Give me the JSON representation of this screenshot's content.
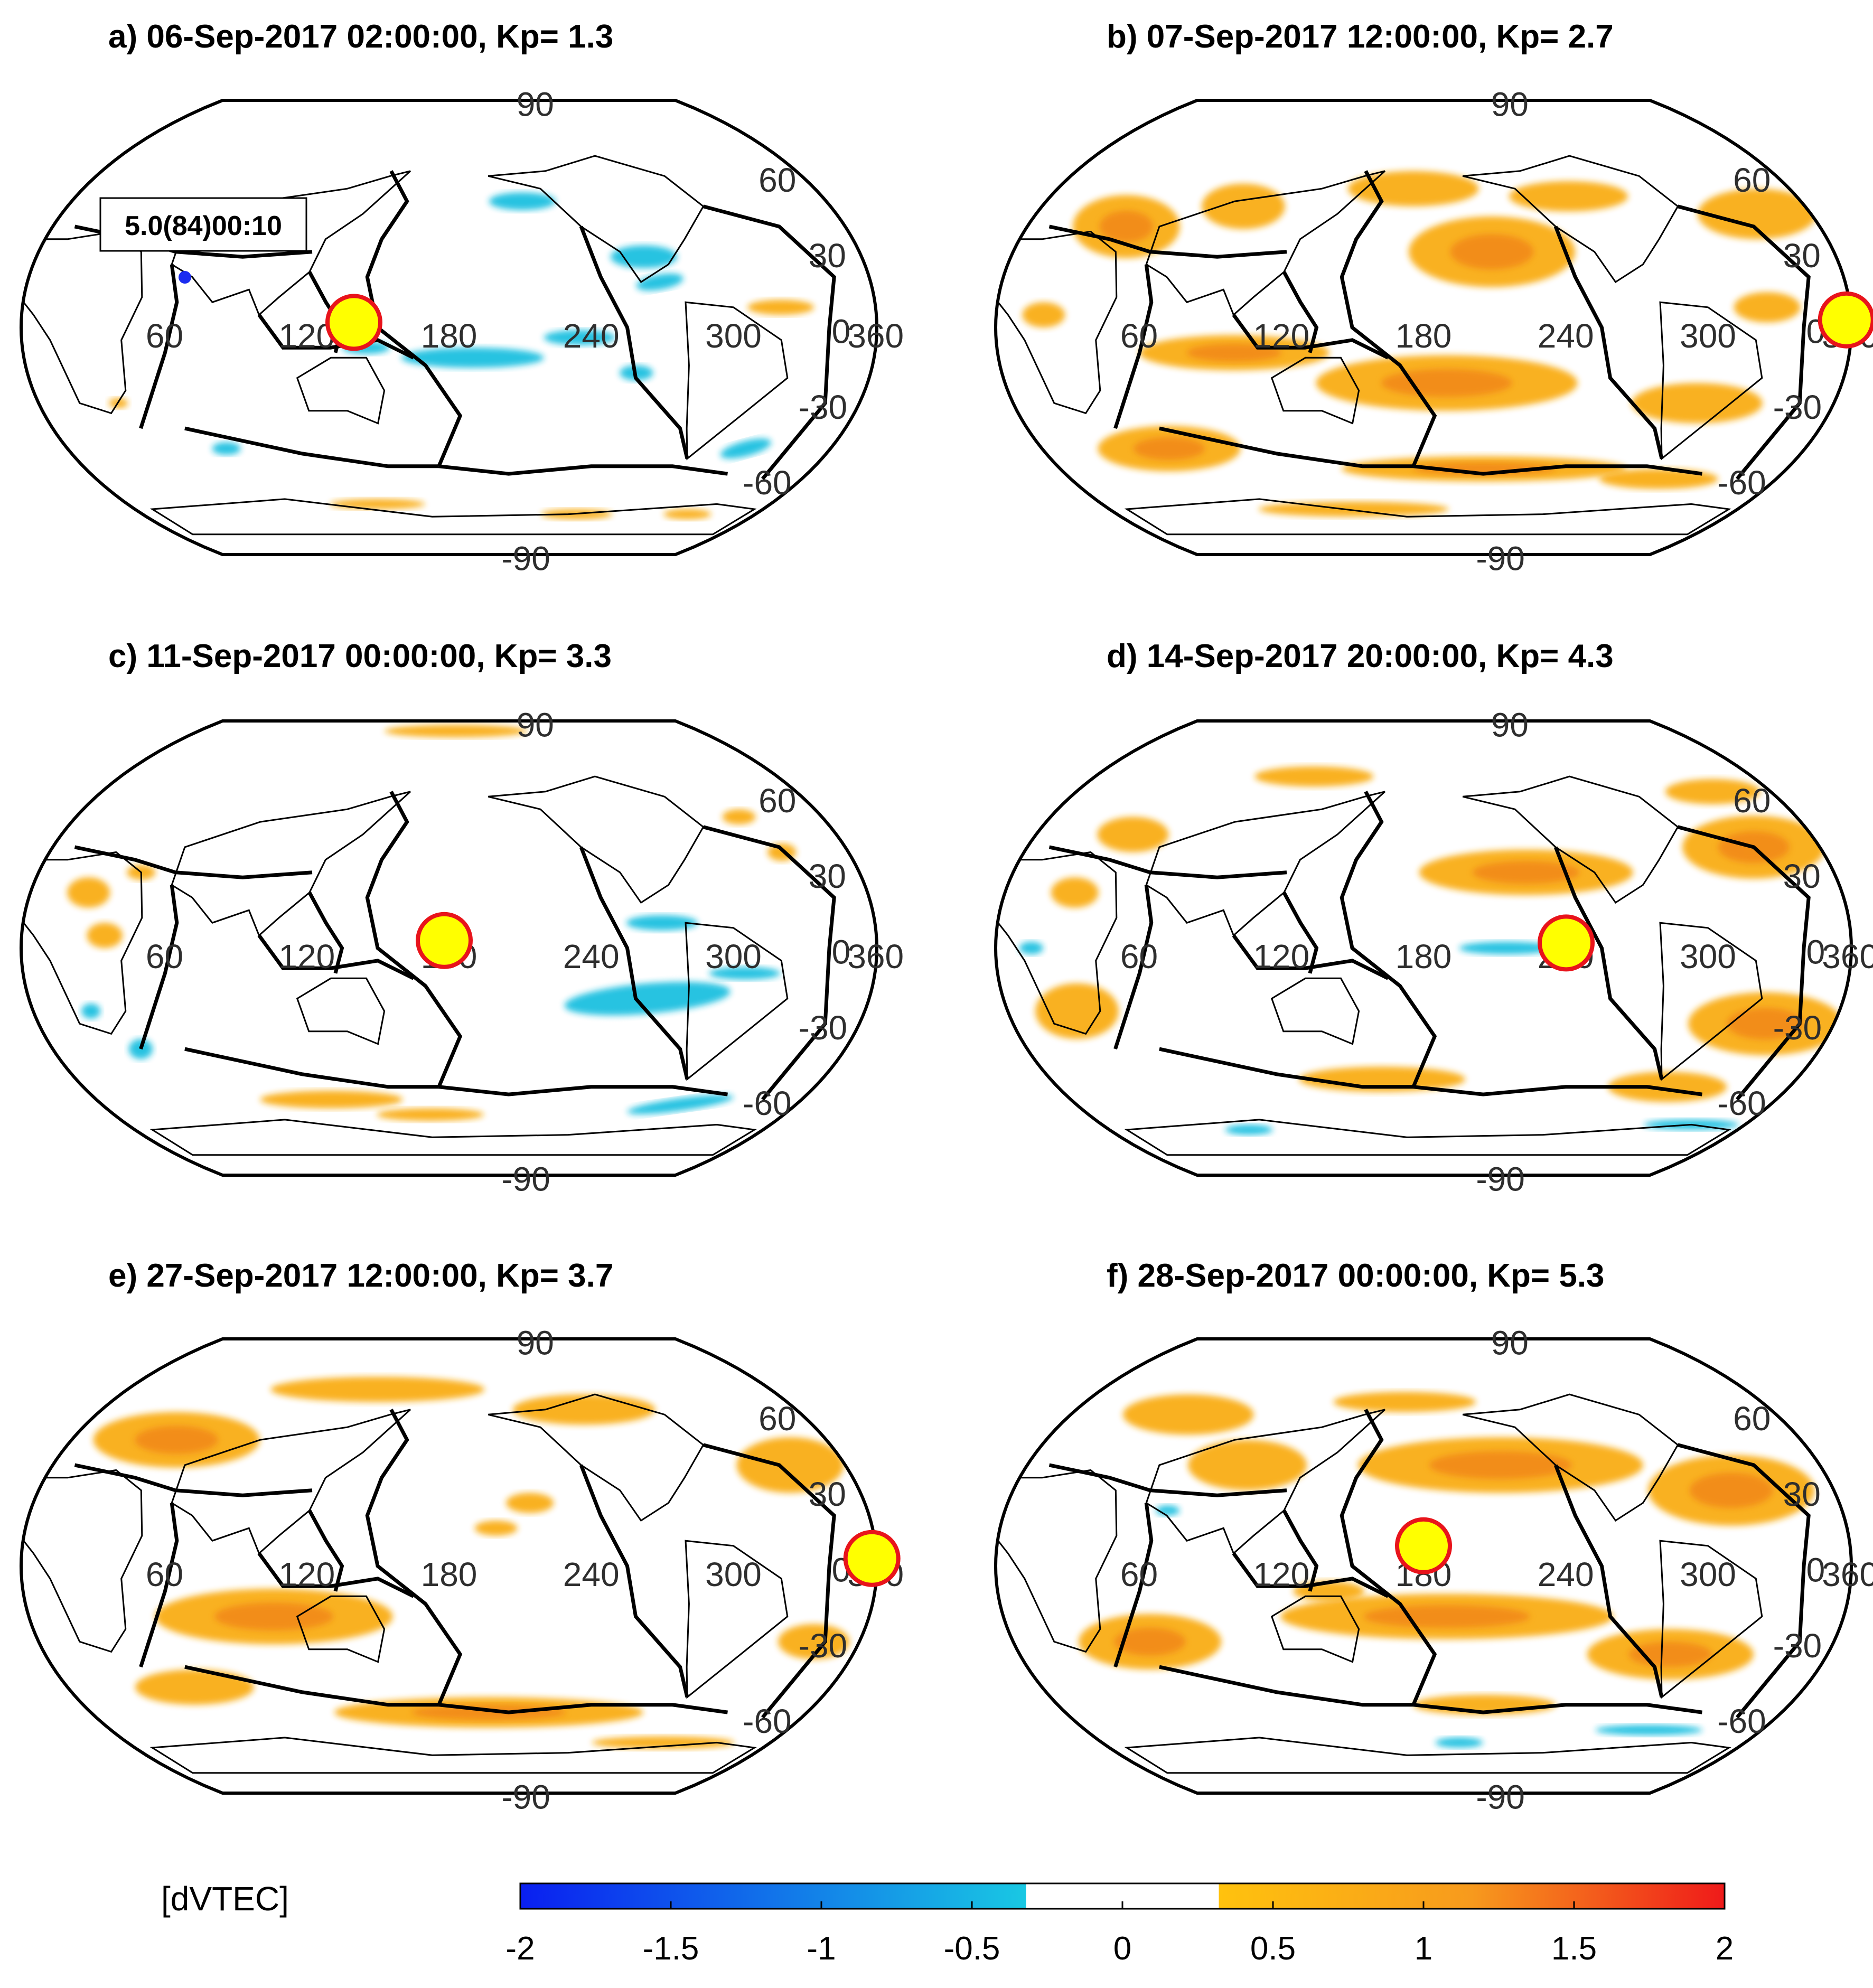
{
  "figure": {
    "colorbar": {
      "label": "[dVTEC]",
      "range": [
        -2,
        2
      ],
      "ticks": [
        "-2",
        "-1.5",
        "-1",
        "-0.5",
        "0",
        "0.5",
        "1",
        "1.5",
        "2"
      ],
      "white_band": [
        -0.3,
        0.3
      ],
      "colors": {
        "neg_strong": "#0a1ff0",
        "neg_weak": "#19c8e3",
        "zero": "#ffffff",
        "pos_weak": "#ffc20e",
        "pos_mid": "#f79a1d",
        "pos_strong": "#ef1a1a"
      }
    },
    "grid_labels": {
      "lon": [
        "60",
        "120",
        "180",
        "240",
        "300",
        "360"
      ],
      "lat_top": "90",
      "lat_60": "60",
      "lat_30": "30",
      "lat_0": "0",
      "lat_m30": "-30",
      "lat_m60": "-60",
      "lat_bottom": "-90"
    },
    "colors": {
      "positive": "#f9ad17",
      "positive_dark": "#f07f16",
      "positive_hot": "#eb4b1c",
      "negative": "#1ec0e0",
      "epicenter_fill": "#ffff00",
      "epicenter_edge": "#e8141b"
    }
  },
  "panels": [
    {
      "title": "a)  06-Sep-2017 02:00:00,    Kp= 1.3",
      "annotation": "5.0(84)00:10",
      "epicenter": {
        "lon": 140,
        "lat": 2
      },
      "blobs": [
        {
          "sign": "neg",
          "lon": 215,
          "lat": 50,
          "w": 28,
          "h": 7,
          "rot": 0
        },
        {
          "sign": "neg",
          "lon": 265,
          "lat": 28,
          "w": 28,
          "h": 9,
          "rot": 0
        },
        {
          "sign": "neg",
          "lon": 270,
          "lat": 18,
          "w": 20,
          "h": 6,
          "rot": -10
        },
        {
          "sign": "neg",
          "lon": 190,
          "lat": -12,
          "w": 60,
          "h": 8,
          "rot": 0
        },
        {
          "sign": "neg",
          "lon": 235,
          "lat": -4,
          "w": 30,
          "h": 6,
          "rot": 0
        },
        {
          "sign": "neg",
          "lon": 145,
          "lat": -8,
          "w": 20,
          "h": 5,
          "rot": 0
        },
        {
          "sign": "neg",
          "lon": 260,
          "lat": -18,
          "w": 14,
          "h": 6,
          "rot": 0
        },
        {
          "sign": "neg",
          "lon": 320,
          "lat": -48,
          "w": 22,
          "h": 6,
          "rot": -15
        },
        {
          "sign": "neg",
          "lon": 75,
          "lat": -48,
          "w": 12,
          "h": 5,
          "rot": 0
        },
        {
          "sign": "pos",
          "lon": 320,
          "lat": 8,
          "w": 28,
          "h": 6,
          "rot": 0
        },
        {
          "sign": "pos",
          "lon": 140,
          "lat": -70,
          "w": 40,
          "h": 4,
          "rot": 0
        },
        {
          "sign": "pos",
          "lon": 255,
          "lat": -74,
          "w": 30,
          "h": 4,
          "rot": 0
        },
        {
          "sign": "pos",
          "lon": 320,
          "lat": -74,
          "w": 20,
          "h": 4,
          "rot": 0
        },
        {
          "sign": "pos",
          "lon": 35,
          "lat": -30,
          "w": 8,
          "h": 4,
          "rot": 0
        }
      ]
    },
    {
      "title": "b)  07-Sep-2017 12:00:00,    Kp= 2.7",
      "annotation": "",
      "epicenter": {
        "lon": 358,
        "lat": 3
      },
      "blobs": [
        {
          "sign": "pos",
          "lon": 45,
          "lat": 40,
          "w": 45,
          "h": 25,
          "rot": 0
        },
        {
          "sign": "pos",
          "lon": 95,
          "lat": 48,
          "w": 35,
          "h": 18,
          "rot": 0
        },
        {
          "sign": "pos",
          "lon": 210,
          "lat": 30,
          "w": 70,
          "h": 28,
          "rot": 0
        },
        {
          "sign": "pos",
          "lon": 175,
          "lat": 55,
          "w": 55,
          "h": 14,
          "rot": 0
        },
        {
          "sign": "pos",
          "lon": 250,
          "lat": 52,
          "w": 50,
          "h": 12,
          "rot": 0
        },
        {
          "sign": "pos",
          "lon": 335,
          "lat": 45,
          "w": 50,
          "h": 20,
          "rot": 0
        },
        {
          "sign": "pos",
          "lon": 325,
          "lat": 8,
          "w": 28,
          "h": 12,
          "rot": 0
        },
        {
          "sign": "pos",
          "lon": 100,
          "lat": -10,
          "w": 80,
          "h": 14,
          "rot": 0
        },
        {
          "sign": "pos",
          "lon": 190,
          "lat": -22,
          "w": 110,
          "h": 22,
          "rot": 0
        },
        {
          "sign": "pos",
          "lon": 300,
          "lat": -30,
          "w": 55,
          "h": 16,
          "rot": 0
        },
        {
          "sign": "pos",
          "lon": 60,
          "lat": -48,
          "w": 60,
          "h": 18,
          "rot": 0
        },
        {
          "sign": "pos",
          "lon": 210,
          "lat": -56,
          "w": 120,
          "h": 10,
          "rot": 0
        },
        {
          "sign": "pos",
          "lon": 140,
          "lat": -72,
          "w": 80,
          "h": 6,
          "rot": 0
        },
        {
          "sign": "pos",
          "lon": 300,
          "lat": -60,
          "w": 50,
          "h": 8,
          "rot": 0
        },
        {
          "sign": "pos",
          "lon": 20,
          "lat": 5,
          "w": 18,
          "h": 10,
          "rot": 0
        }
      ]
    },
    {
      "title": "c)  11-Sep-2017 00:00:00,    Kp= 3.3",
      "annotation": "",
      "epicenter": {
        "lon": 178,
        "lat": 3
      },
      "blobs": [
        {
          "sign": "pos",
          "lon": 185,
          "lat": 86,
          "w": 60,
          "h": 5,
          "rot": 0
        },
        {
          "sign": "pos",
          "lon": 25,
          "lat": 22,
          "w": 18,
          "h": 12,
          "rot": 0
        },
        {
          "sign": "pos",
          "lon": 35,
          "lat": 5,
          "w": 15,
          "h": 10,
          "rot": 0
        },
        {
          "sign": "pos",
          "lon": 320,
          "lat": 52,
          "w": 14,
          "h": 6,
          "rot": 0
        },
        {
          "sign": "pos",
          "lon": 330,
          "lat": 38,
          "w": 12,
          "h": 7,
          "rot": 0
        },
        {
          "sign": "pos",
          "lon": 120,
          "lat": -60,
          "w": 60,
          "h": 7,
          "rot": 0
        },
        {
          "sign": "pos",
          "lon": 170,
          "lat": -66,
          "w": 45,
          "h": 5,
          "rot": 0
        },
        {
          "sign": "pos",
          "lon": 45,
          "lat": 30,
          "w": 12,
          "h": 6,
          "rot": 0
        },
        {
          "sign": "neg",
          "lon": 265,
          "lat": -20,
          "w": 70,
          "h": 12,
          "rot": -5
        },
        {
          "sign": "neg",
          "lon": 270,
          "lat": 10,
          "w": 30,
          "h": 6,
          "rot": 0
        },
        {
          "sign": "neg",
          "lon": 305,
          "lat": -10,
          "w": 30,
          "h": 5,
          "rot": 0
        },
        {
          "sign": "neg",
          "lon": 40,
          "lat": -40,
          "w": 10,
          "h": 8,
          "rot": 0
        },
        {
          "sign": "neg",
          "lon": 300,
          "lat": -62,
          "w": 45,
          "h": 5,
          "rot": -8
        },
        {
          "sign": "neg",
          "lon": 25,
          "lat": -25,
          "w": 8,
          "h": 6,
          "rot": 0
        }
      ]
    },
    {
      "title": "d)  14-Sep-2017 20:00:00,    Kp= 4.3",
      "annotation": "",
      "epicenter": {
        "lon": 240,
        "lat": 2
      },
      "blobs": [
        {
          "sign": "pos",
          "lon": 120,
          "lat": 68,
          "w": 50,
          "h": 8,
          "rot": 0
        },
        {
          "sign": "pos",
          "lon": 45,
          "lat": 45,
          "w": 30,
          "h": 14,
          "rot": 0
        },
        {
          "sign": "pos",
          "lon": 30,
          "lat": 22,
          "w": 20,
          "h": 12,
          "rot": 0
        },
        {
          "sign": "pos",
          "lon": 30,
          "lat": -25,
          "w": 35,
          "h": 22,
          "rot": 0
        },
        {
          "sign": "pos",
          "lon": 225,
          "lat": 30,
          "w": 90,
          "h": 18,
          "rot": 0
        },
        {
          "sign": "pos",
          "lon": 330,
          "lat": 40,
          "w": 60,
          "h": 25,
          "rot": 0
        },
        {
          "sign": "pos",
          "lon": 330,
          "lat": 62,
          "w": 40,
          "h": 10,
          "rot": 0
        },
        {
          "sign": "pos",
          "lon": 330,
          "lat": -30,
          "w": 65,
          "h": 25,
          "rot": 0
        },
        {
          "sign": "pos",
          "lon": 300,
          "lat": -55,
          "w": 50,
          "h": 12,
          "rot": 0
        },
        {
          "sign": "pos",
          "lon": 160,
          "lat": -52,
          "w": 70,
          "h": 10,
          "rot": 0
        },
        {
          "sign": "neg",
          "lon": 215,
          "lat": 0,
          "w": 40,
          "h": 5,
          "rot": 0
        },
        {
          "sign": "neg",
          "lon": 330,
          "lat": -70,
          "w": 40,
          "h": 4,
          "rot": 0
        },
        {
          "sign": "neg",
          "lon": 15,
          "lat": 0,
          "w": 10,
          "h": 5,
          "rot": 0
        },
        {
          "sign": "neg",
          "lon": 80,
          "lat": -72,
          "w": 20,
          "h": 4,
          "rot": 0
        }
      ]
    },
    {
      "title": "e)  27-Sep-2017 12:00:00,    Kp= 3.7",
      "annotation": "",
      "epicenter": {
        "lon": 358,
        "lat": 3
      },
      "blobs": [
        {
          "sign": "pos",
          "lon": 50,
          "lat": 50,
          "w": 70,
          "h": 22,
          "rot": 0
        },
        {
          "sign": "pos",
          "lon": 140,
          "lat": 70,
          "w": 90,
          "h": 10,
          "rot": 0
        },
        {
          "sign": "pos",
          "lon": 250,
          "lat": 62,
          "w": 60,
          "h": 12,
          "rot": 0
        },
        {
          "sign": "pos",
          "lon": 335,
          "lat": 40,
          "w": 45,
          "h": 22,
          "rot": 0
        },
        {
          "sign": "pos",
          "lon": 215,
          "lat": 25,
          "w": 20,
          "h": 8,
          "rot": 0
        },
        {
          "sign": "pos",
          "lon": 200,
          "lat": 15,
          "w": 18,
          "h": 6,
          "rot": 0
        },
        {
          "sign": "pos",
          "lon": 105,
          "lat": -20,
          "w": 100,
          "h": 22,
          "rot": 0
        },
        {
          "sign": "pos",
          "lon": 200,
          "lat": -58,
          "w": 130,
          "h": 12,
          "rot": 0
        },
        {
          "sign": "pos",
          "lon": 60,
          "lat": -48,
          "w": 50,
          "h": 14,
          "rot": 0
        },
        {
          "sign": "pos",
          "lon": 340,
          "lat": -30,
          "w": 30,
          "h": 14,
          "rot": 0
        },
        {
          "sign": "pos",
          "lon": 300,
          "lat": -70,
          "w": 60,
          "h": 5,
          "rot": 0
        }
      ]
    },
    {
      "title": "f)  28-Sep-2017 00:00:00,    Kp= 5.3",
      "annotation": "",
      "epicenter": {
        "lon": 180,
        "lat": 8
      },
      "blobs": [
        {
          "sign": "pos",
          "lon": 60,
          "lat": 60,
          "w": 55,
          "h": 16,
          "rot": 0
        },
        {
          "sign": "pos",
          "lon": 100,
          "lat": 40,
          "w": 50,
          "h": 20,
          "rot": 0
        },
        {
          "sign": "pos",
          "lon": 215,
          "lat": 40,
          "w": 120,
          "h": 22,
          "rot": 0
        },
        {
          "sign": "pos",
          "lon": 315,
          "lat": 30,
          "w": 70,
          "h": 28,
          "rot": 0
        },
        {
          "sign": "pos",
          "lon": 170,
          "lat": 65,
          "w": 60,
          "h": 8,
          "rot": 0
        },
        {
          "sign": "pos",
          "lon": 190,
          "lat": -20,
          "w": 140,
          "h": 18,
          "rot": 0
        },
        {
          "sign": "pos",
          "lon": 290,
          "lat": -35,
          "w": 70,
          "h": 20,
          "rot": 0
        },
        {
          "sign": "pos",
          "lon": 60,
          "lat": -30,
          "w": 60,
          "h": 22,
          "rot": 0
        },
        {
          "sign": "pos",
          "lon": 140,
          "lat": -10,
          "w": 30,
          "h": 8,
          "rot": 0
        },
        {
          "sign": "pos",
          "lon": 210,
          "lat": -55,
          "w": 60,
          "h": 8,
          "rot": 0
        },
        {
          "sign": "neg",
          "lon": 300,
          "lat": -65,
          "w": 45,
          "h": 4,
          "rot": 0
        },
        {
          "sign": "neg",
          "lon": 200,
          "lat": -70,
          "w": 20,
          "h": 4,
          "rot": 0
        },
        {
          "sign": "neg",
          "lon": 70,
          "lat": 22,
          "w": 10,
          "h": 4,
          "rot": 0
        }
      ]
    }
  ]
}
